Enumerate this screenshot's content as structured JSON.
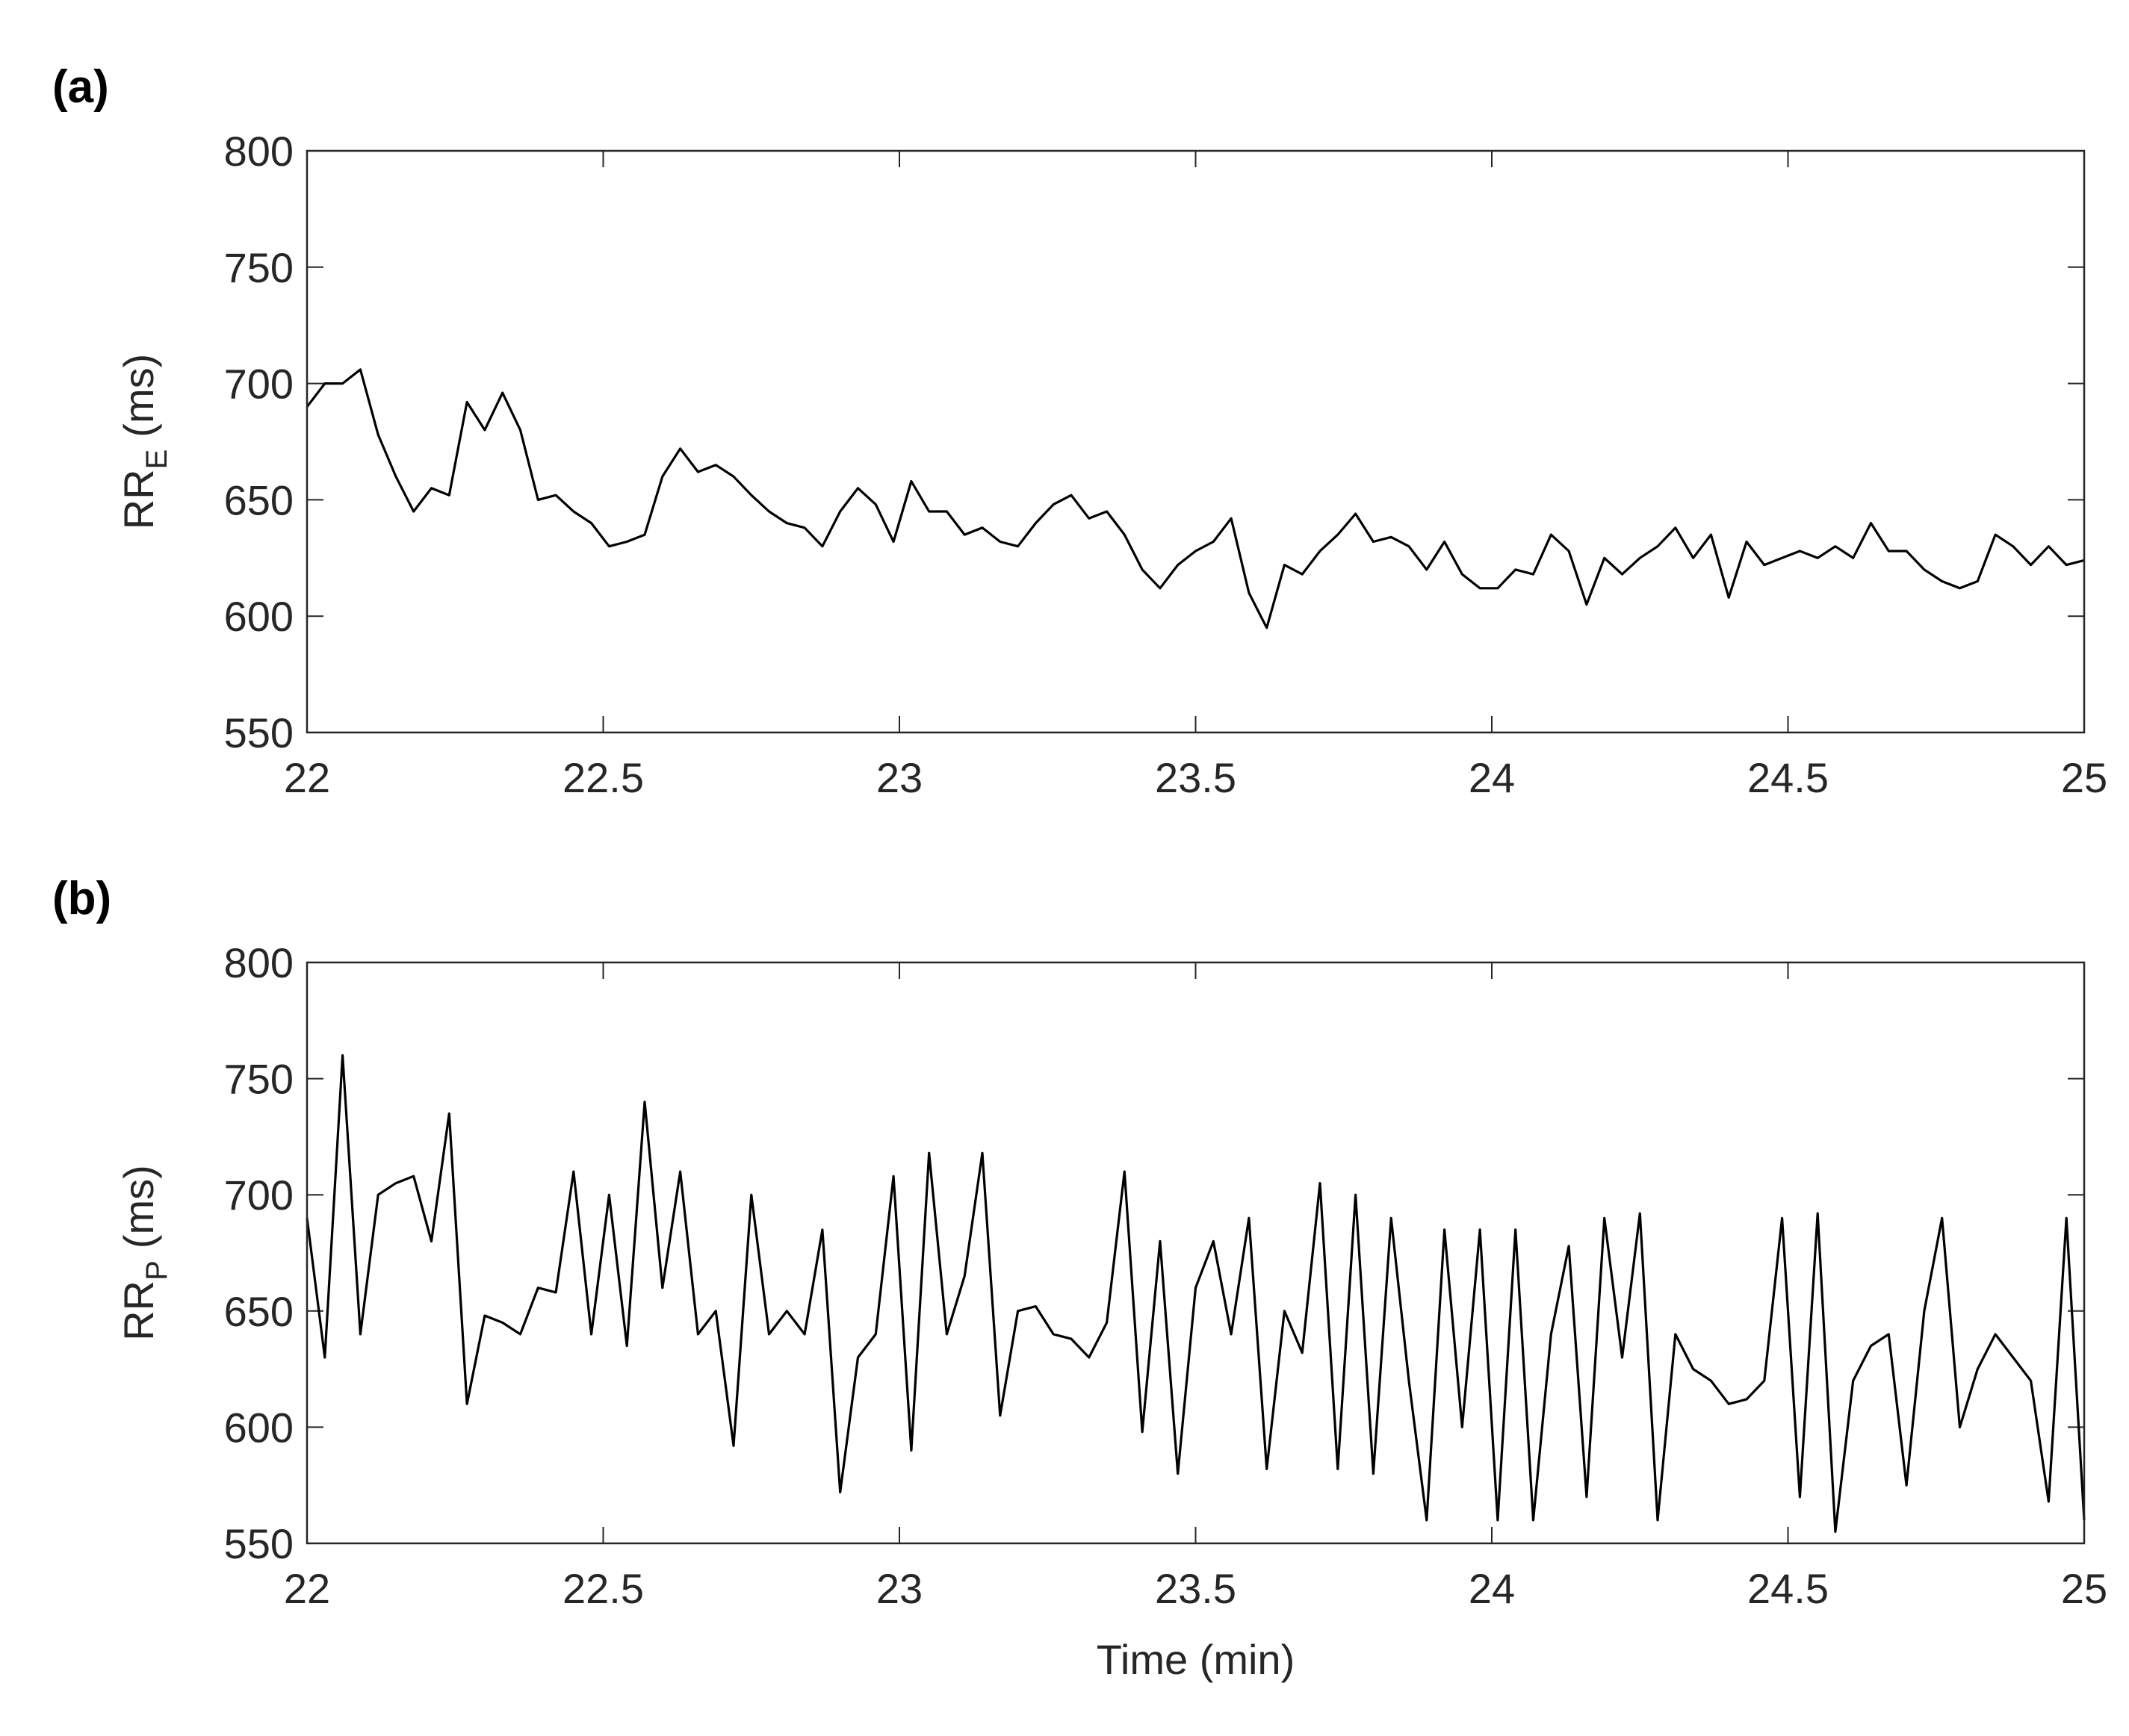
{
  "chart_data": [
    {
      "type": "line",
      "panel_label": "(a)",
      "ylabel": "RR",
      "ylabel_sub": "E",
      "ylabel_unit": "(ms)",
      "color": "#000000",
      "xlim": [
        22,
        25
      ],
      "xticks": [
        22,
        22.5,
        23,
        23.5,
        24,
        24.5,
        25
      ],
      "ylim": [
        550,
        800
      ],
      "yticks": [
        550,
        600,
        650,
        700,
        750,
        800
      ],
      "x": [
        22,
        22.03,
        22.06,
        22.09,
        22.12,
        22.15,
        22.18,
        22.21,
        22.24,
        22.27,
        22.3,
        22.33,
        22.36,
        22.39,
        22.42,
        22.45,
        22.48,
        22.51,
        22.54,
        22.57,
        22.6,
        22.63,
        22.66,
        22.69,
        22.72,
        22.75,
        22.78,
        22.81,
        22.84,
        22.87,
        22.9,
        22.93,
        22.96,
        22.99,
        23.02,
        23.05,
        23.08,
        23.11,
        23.14,
        23.17,
        23.2,
        23.23,
        23.26,
        23.29,
        23.32,
        23.35,
        23.38,
        23.41,
        23.44,
        23.47,
        23.5,
        23.53,
        23.56,
        23.59,
        23.62,
        23.65,
        23.68,
        23.71,
        23.74,
        23.77,
        23.8,
        23.83,
        23.86,
        23.89,
        23.92,
        23.95,
        23.98,
        24.01,
        24.04,
        24.07,
        24.1,
        24.13,
        24.16,
        24.19,
        24.22,
        24.25,
        24.28,
        24.31,
        24.34,
        24.37,
        24.4,
        24.43,
        24.46,
        24.49,
        24.52,
        24.55,
        24.58,
        24.61,
        24.64,
        24.67,
        24.7,
        24.73,
        24.76,
        24.79,
        24.82,
        24.85,
        24.88,
        24.91,
        24.94,
        24.97,
        25
      ],
      "values": [
        690,
        700,
        700,
        706,
        678,
        660,
        645,
        655,
        652,
        692,
        680,
        696,
        680,
        650,
        652,
        645,
        640,
        630,
        632,
        635,
        660,
        672,
        662,
        665,
        660,
        652,
        645,
        640,
        638,
        630,
        645,
        655,
        648,
        632,
        658,
        645,
        645,
        635,
        638,
        632,
        630,
        640,
        648,
        652,
        642,
        645,
        635,
        620,
        612,
        622,
        628,
        632,
        642,
        610,
        595,
        622,
        618,
        628,
        635,
        644,
        632,
        634,
        630,
        620,
        632,
        618,
        612,
        612,
        620,
        618,
        635,
        628,
        605,
        625,
        618,
        625,
        630,
        638,
        625,
        635,
        608,
        632,
        622,
        625,
        628,
        625,
        630,
        625,
        640,
        628,
        628,
        620,
        615,
        612,
        615,
        635,
        630,
        622,
        630,
        622,
        624
      ]
    },
    {
      "type": "line",
      "panel_label": "(b)",
      "ylabel": "RR",
      "ylabel_sub": "P",
      "ylabel_unit": "(ms)",
      "xlabel": "Time (min)",
      "color": "#000000",
      "xlim": [
        22,
        25
      ],
      "xticks": [
        22,
        22.5,
        23,
        23.5,
        24,
        24.5,
        25
      ],
      "ylim": [
        550,
        800
      ],
      "yticks": [
        550,
        600,
        650,
        700,
        750,
        800
      ],
      "x": [
        22,
        22.03,
        22.06,
        22.09,
        22.12,
        22.15,
        22.18,
        22.21,
        22.24,
        22.27,
        22.3,
        22.33,
        22.36,
        22.39,
        22.42,
        22.45,
        22.48,
        22.51,
        22.54,
        22.57,
        22.6,
        22.63,
        22.66,
        22.69,
        22.72,
        22.75,
        22.78,
        22.81,
        22.84,
        22.87,
        22.9,
        22.93,
        22.96,
        22.99,
        23.02,
        23.05,
        23.08,
        23.11,
        23.14,
        23.17,
        23.2,
        23.23,
        23.26,
        23.29,
        23.32,
        23.35,
        23.38,
        23.41,
        23.44,
        23.47,
        23.5,
        23.53,
        23.56,
        23.59,
        23.62,
        23.65,
        23.68,
        23.71,
        23.74,
        23.77,
        23.8,
        23.83,
        23.86,
        23.89,
        23.92,
        23.95,
        23.98,
        24.01,
        24.04,
        24.07,
        24.1,
        24.13,
        24.16,
        24.19,
        24.22,
        24.25,
        24.28,
        24.31,
        24.34,
        24.37,
        24.4,
        24.43,
        24.46,
        24.49,
        24.52,
        24.55,
        24.58,
        24.61,
        24.64,
        24.67,
        24.7,
        24.73,
        24.76,
        24.79,
        24.82,
        24.85,
        24.88,
        24.91,
        24.94,
        24.97,
        25
      ],
      "values": [
        690,
        630,
        760,
        640,
        700,
        705,
        708,
        680,
        735,
        610,
        648,
        645,
        640,
        660,
        658,
        710,
        640,
        700,
        635,
        740,
        660,
        710,
        640,
        650,
        592,
        700,
        640,
        650,
        640,
        685,
        572,
        630,
        640,
        708,
        590,
        718,
        640,
        665,
        718,
        605,
        650,
        652,
        640,
        638,
        630,
        645,
        710,
        598,
        680,
        580,
        660,
        680,
        640,
        690,
        582,
        650,
        632,
        705,
        582,
        700,
        580,
        690,
        620,
        560,
        685,
        600,
        685,
        560,
        685,
        560,
        640,
        678,
        570,
        690,
        630,
        692,
        560,
        640,
        625,
        620,
        610,
        612,
        620,
        690,
        570,
        692,
        555,
        620,
        635,
        640,
        575,
        650,
        690,
        600,
        625,
        640,
        630,
        620,
        568,
        690,
        560
      ]
    }
  ]
}
